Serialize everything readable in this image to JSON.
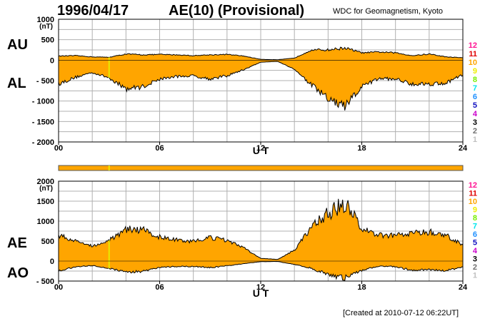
{
  "header": {
    "date": "1996/04/17",
    "title": "AE(10) (Provisional)",
    "organization": "WDC for Geomagnetism, Kyoto",
    "created": "[Created at 2010-07-12 06:22UT]"
  },
  "colors": {
    "fill": "#ffa500",
    "curve": "#000000",
    "grid": "#b0b0b0",
    "bar": "#ffa500",
    "station_highlight": "#e8e800"
  },
  "station_legend": [
    {
      "label": "12",
      "color": "#ff1493"
    },
    {
      "label": "11",
      "color": "#e00000"
    },
    {
      "label": "10",
      "color": "#ffa500"
    },
    {
      "label": "9",
      "color": "#eeee00"
    },
    {
      "label": "8",
      "color": "#77ee00"
    },
    {
      "label": "7",
      "color": "#00e5ee"
    },
    {
      "label": "6",
      "color": "#1e90ff"
    },
    {
      "label": "5",
      "color": "#1010c0"
    },
    {
      "label": "4",
      "color": "#cc00cc"
    },
    {
      "label": "3",
      "color": "#000000"
    },
    {
      "label": "2",
      "color": "#707070"
    },
    {
      "label": "1",
      "color": "#c0c0c0"
    }
  ],
  "chart_data": [
    {
      "type": "area",
      "upper_label": "AU",
      "lower_label": "AL",
      "unit": "(nT)",
      "xlabel": "U T",
      "xlim": [
        0,
        24
      ],
      "ylim": [
        -2000,
        1000
      ],
      "yticks": [
        1000,
        500,
        0,
        -500,
        -1000,
        -1500,
        -2000
      ],
      "ytick_labels": [
        "1000",
        "500",
        "0",
        "- 500",
        "- 1000",
        "- 1500",
        "- 2000"
      ],
      "xticks": [
        0,
        6,
        12,
        18,
        24
      ],
      "xtick_labels": [
        "00",
        "06",
        "12",
        "18",
        "24"
      ],
      "grid": true,
      "x": [
        0,
        1,
        2,
        3,
        4,
        5,
        6,
        7,
        8,
        9,
        10,
        11,
        12,
        13,
        14,
        15,
        16,
        17,
        18,
        19,
        20,
        21,
        22,
        23,
        24
      ],
      "series": [
        {
          "name": "AU",
          "values": [
            100,
            110,
            80,
            70,
            150,
            130,
            140,
            130,
            110,
            130,
            140,
            100,
            20,
            10,
            50,
            250,
            250,
            300,
            180,
            200,
            180,
            110,
            150,
            80,
            60
          ]
        },
        {
          "name": "AL",
          "values": [
            -580,
            -420,
            -300,
            -430,
            -700,
            -650,
            -460,
            -400,
            -380,
            -460,
            -380,
            -230,
            -50,
            -30,
            -220,
            -600,
            -950,
            -1150,
            -650,
            -450,
            -460,
            -580,
            -580,
            -560,
            -350
          ]
        }
      ]
    },
    {
      "type": "area",
      "upper_label": "AE",
      "lower_label": "AO",
      "unit": "(nT)",
      "xlabel": "U T",
      "xlim": [
        0,
        24
      ],
      "ylim": [
        -500,
        2000
      ],
      "yticks": [
        2000,
        1500,
        1000,
        500,
        0,
        -500
      ],
      "ytick_labels": [
        "2000",
        "1500",
        "1000",
        "500",
        "0",
        "- 500"
      ],
      "xticks": [
        0,
        6,
        12,
        18,
        24
      ],
      "xtick_labels": [
        "00",
        "06",
        "12",
        "18",
        "24"
      ],
      "grid": true,
      "x": [
        0,
        1,
        2,
        3,
        4,
        5,
        6,
        7,
        8,
        9,
        10,
        11,
        12,
        13,
        14,
        15,
        16,
        17,
        18,
        19,
        20,
        21,
        22,
        23,
        24
      ],
      "series": [
        {
          "name": "AE",
          "values": [
            650,
            500,
            380,
            520,
            800,
            780,
            600,
            530,
            490,
            590,
            520,
            330,
            70,
            40,
            270,
            850,
            1200,
            1450,
            830,
            650,
            640,
            690,
            730,
            640,
            410
          ]
        },
        {
          "name": "AO",
          "values": [
            -240,
            -150,
            -110,
            -180,
            -270,
            -260,
            -160,
            -135,
            -135,
            -165,
            -120,
            -65,
            -15,
            -10,
            -85,
            -175,
            -350,
            -425,
            -235,
            -125,
            -140,
            -235,
            -215,
            -240,
            -145
          ]
        }
      ]
    }
  ]
}
